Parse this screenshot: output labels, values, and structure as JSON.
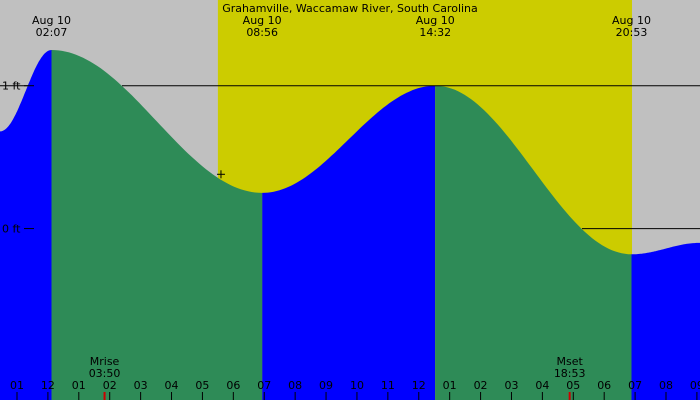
{
  "chart_data": {
    "type": "area",
    "title": "Grahamville, Waccamaw River, South Carolina",
    "y_unit": "ft",
    "y_ticks": [
      {
        "label": "1 ft",
        "value": 1
      },
      {
        "label": "0 ft",
        "value": 0
      }
    ],
    "x_range_hours": [
      0.45,
      23.1
    ],
    "y_range_ft": [
      -1.2,
      1.6
    ],
    "daylight": {
      "start_hour": 7.5,
      "end_hour": 20.9
    },
    "hour_labels": [
      "01",
      "12",
      "01",
      "02",
      "03",
      "04",
      "05",
      "06",
      "07",
      "08",
      "09",
      "10",
      "11",
      "12",
      "01",
      "02",
      "03",
      "04",
      "05",
      "06",
      "07",
      "08",
      "09"
    ],
    "hour_label_offset": -1,
    "extrema": [
      {
        "date": "Aug 10",
        "time": "02:07",
        "hour": 2.117,
        "height": 1.25,
        "type": "high"
      },
      {
        "date": "Aug 10",
        "time": "08:56",
        "hour": 8.933,
        "height": 0.25,
        "type": "low"
      },
      {
        "date": "Aug 10",
        "time": "14:32",
        "hour": 14.533,
        "height": 1.0,
        "type": "high"
      },
      {
        "date": "Aug 10",
        "time": "20:53",
        "hour": 20.883,
        "height": -0.18,
        "type": "low"
      }
    ],
    "start": {
      "hour": 0.45,
      "height": 0.68
    },
    "end": {
      "hour": 23.1,
      "height": -0.1
    },
    "current": {
      "hour": 7.6,
      "height": 0.38
    },
    "moon": [
      {
        "label": "Mrise",
        "time": "03:50",
        "hour": 3.833
      },
      {
        "label": "Mset",
        "time": "18:53",
        "hour": 18.883
      }
    ],
    "colors": {
      "night": "#c0c0c0",
      "day": "#cccc00",
      "rising": "#0000ff",
      "falling": "#2e8b57",
      "line": "#000000",
      "moon_tick": "#cc0000"
    }
  }
}
